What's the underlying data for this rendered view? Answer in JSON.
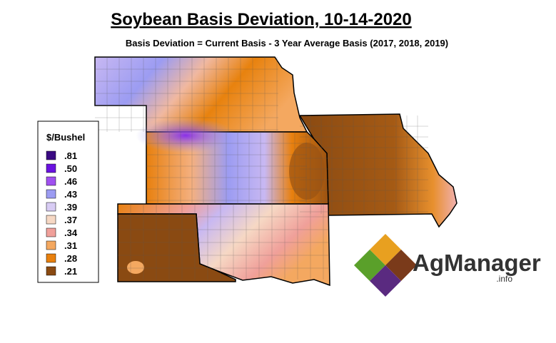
{
  "header": {
    "title": "Soybean Basis Deviation, 10-14-2020",
    "subtitle": "Basis Deviation = Current Basis - 3 Year Average Basis (2017, 2018, 2019)"
  },
  "legend": {
    "title": "$/Bushel",
    "items": [
      {
        "label": ".81",
        "color": "#3a0a82"
      },
      {
        "label": ".50",
        "color": "#6a12e0"
      },
      {
        "label": ".46",
        "color": "#a050f0"
      },
      {
        "label": ".43",
        "color": "#9c9cf2"
      },
      {
        "label": ".39",
        "color": "#d8ccf4"
      },
      {
        "label": ".37",
        "color": "#f6d8c4"
      },
      {
        "label": ".34",
        "color": "#f0a09a"
      },
      {
        "label": ".31",
        "color": "#f4a860"
      },
      {
        "label": ".28",
        "color": "#e8800e"
      },
      {
        "label": ".21",
        "color": "#8a4a12"
      }
    ]
  },
  "logo": {
    "name": "AgManager",
    "suffix": ".info"
  }
}
